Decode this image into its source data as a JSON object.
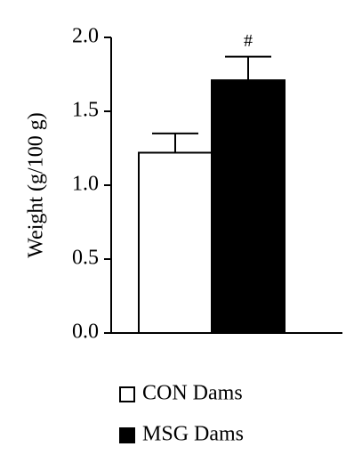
{
  "chart_data": {
    "type": "bar",
    "categories": [
      "CON Dams",
      "MSG Dams"
    ],
    "values": [
      1.22,
      1.71
    ],
    "errors": [
      0.13,
      0.16
    ],
    "colors": [
      "#ffffff",
      "#000000"
    ],
    "ylabel": "Weight (g/100 g)",
    "annotations": [
      "#"
    ],
    "ylim": [
      0,
      2
    ],
    "yticks": [
      {
        "value": 0,
        "label": "0.0"
      },
      0.5,
      {
        "value": 1,
        "label": "1.0"
      },
      1.5,
      {
        "value": 2,
        "label": "2.0"
      }
    ]
  }
}
